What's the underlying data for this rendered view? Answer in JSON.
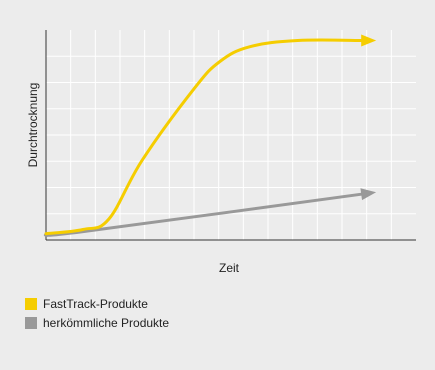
{
  "chart_data": {
    "type": "line",
    "title": "",
    "xlabel": "Zeit",
    "ylabel": "Durchtrocknung",
    "grid": true,
    "xlim": [
      0,
      100
    ],
    "ylim": [
      0,
      100
    ],
    "legend_position": "bottom-left",
    "series": [
      {
        "name": "FastTrack-Produkte",
        "color": "#f5cd00",
        "x": [
          0,
          10,
          17,
          26,
          40,
          47,
          55,
          68,
          86
        ],
        "y": [
          3,
          5,
          10,
          38,
          72,
          85,
          92,
          95,
          95
        ]
      },
      {
        "name": "herkömmliche Produkte",
        "color": "#999999",
        "x": [
          0,
          10,
          86
        ],
        "y": [
          3,
          4,
          22
        ]
      }
    ]
  }
}
